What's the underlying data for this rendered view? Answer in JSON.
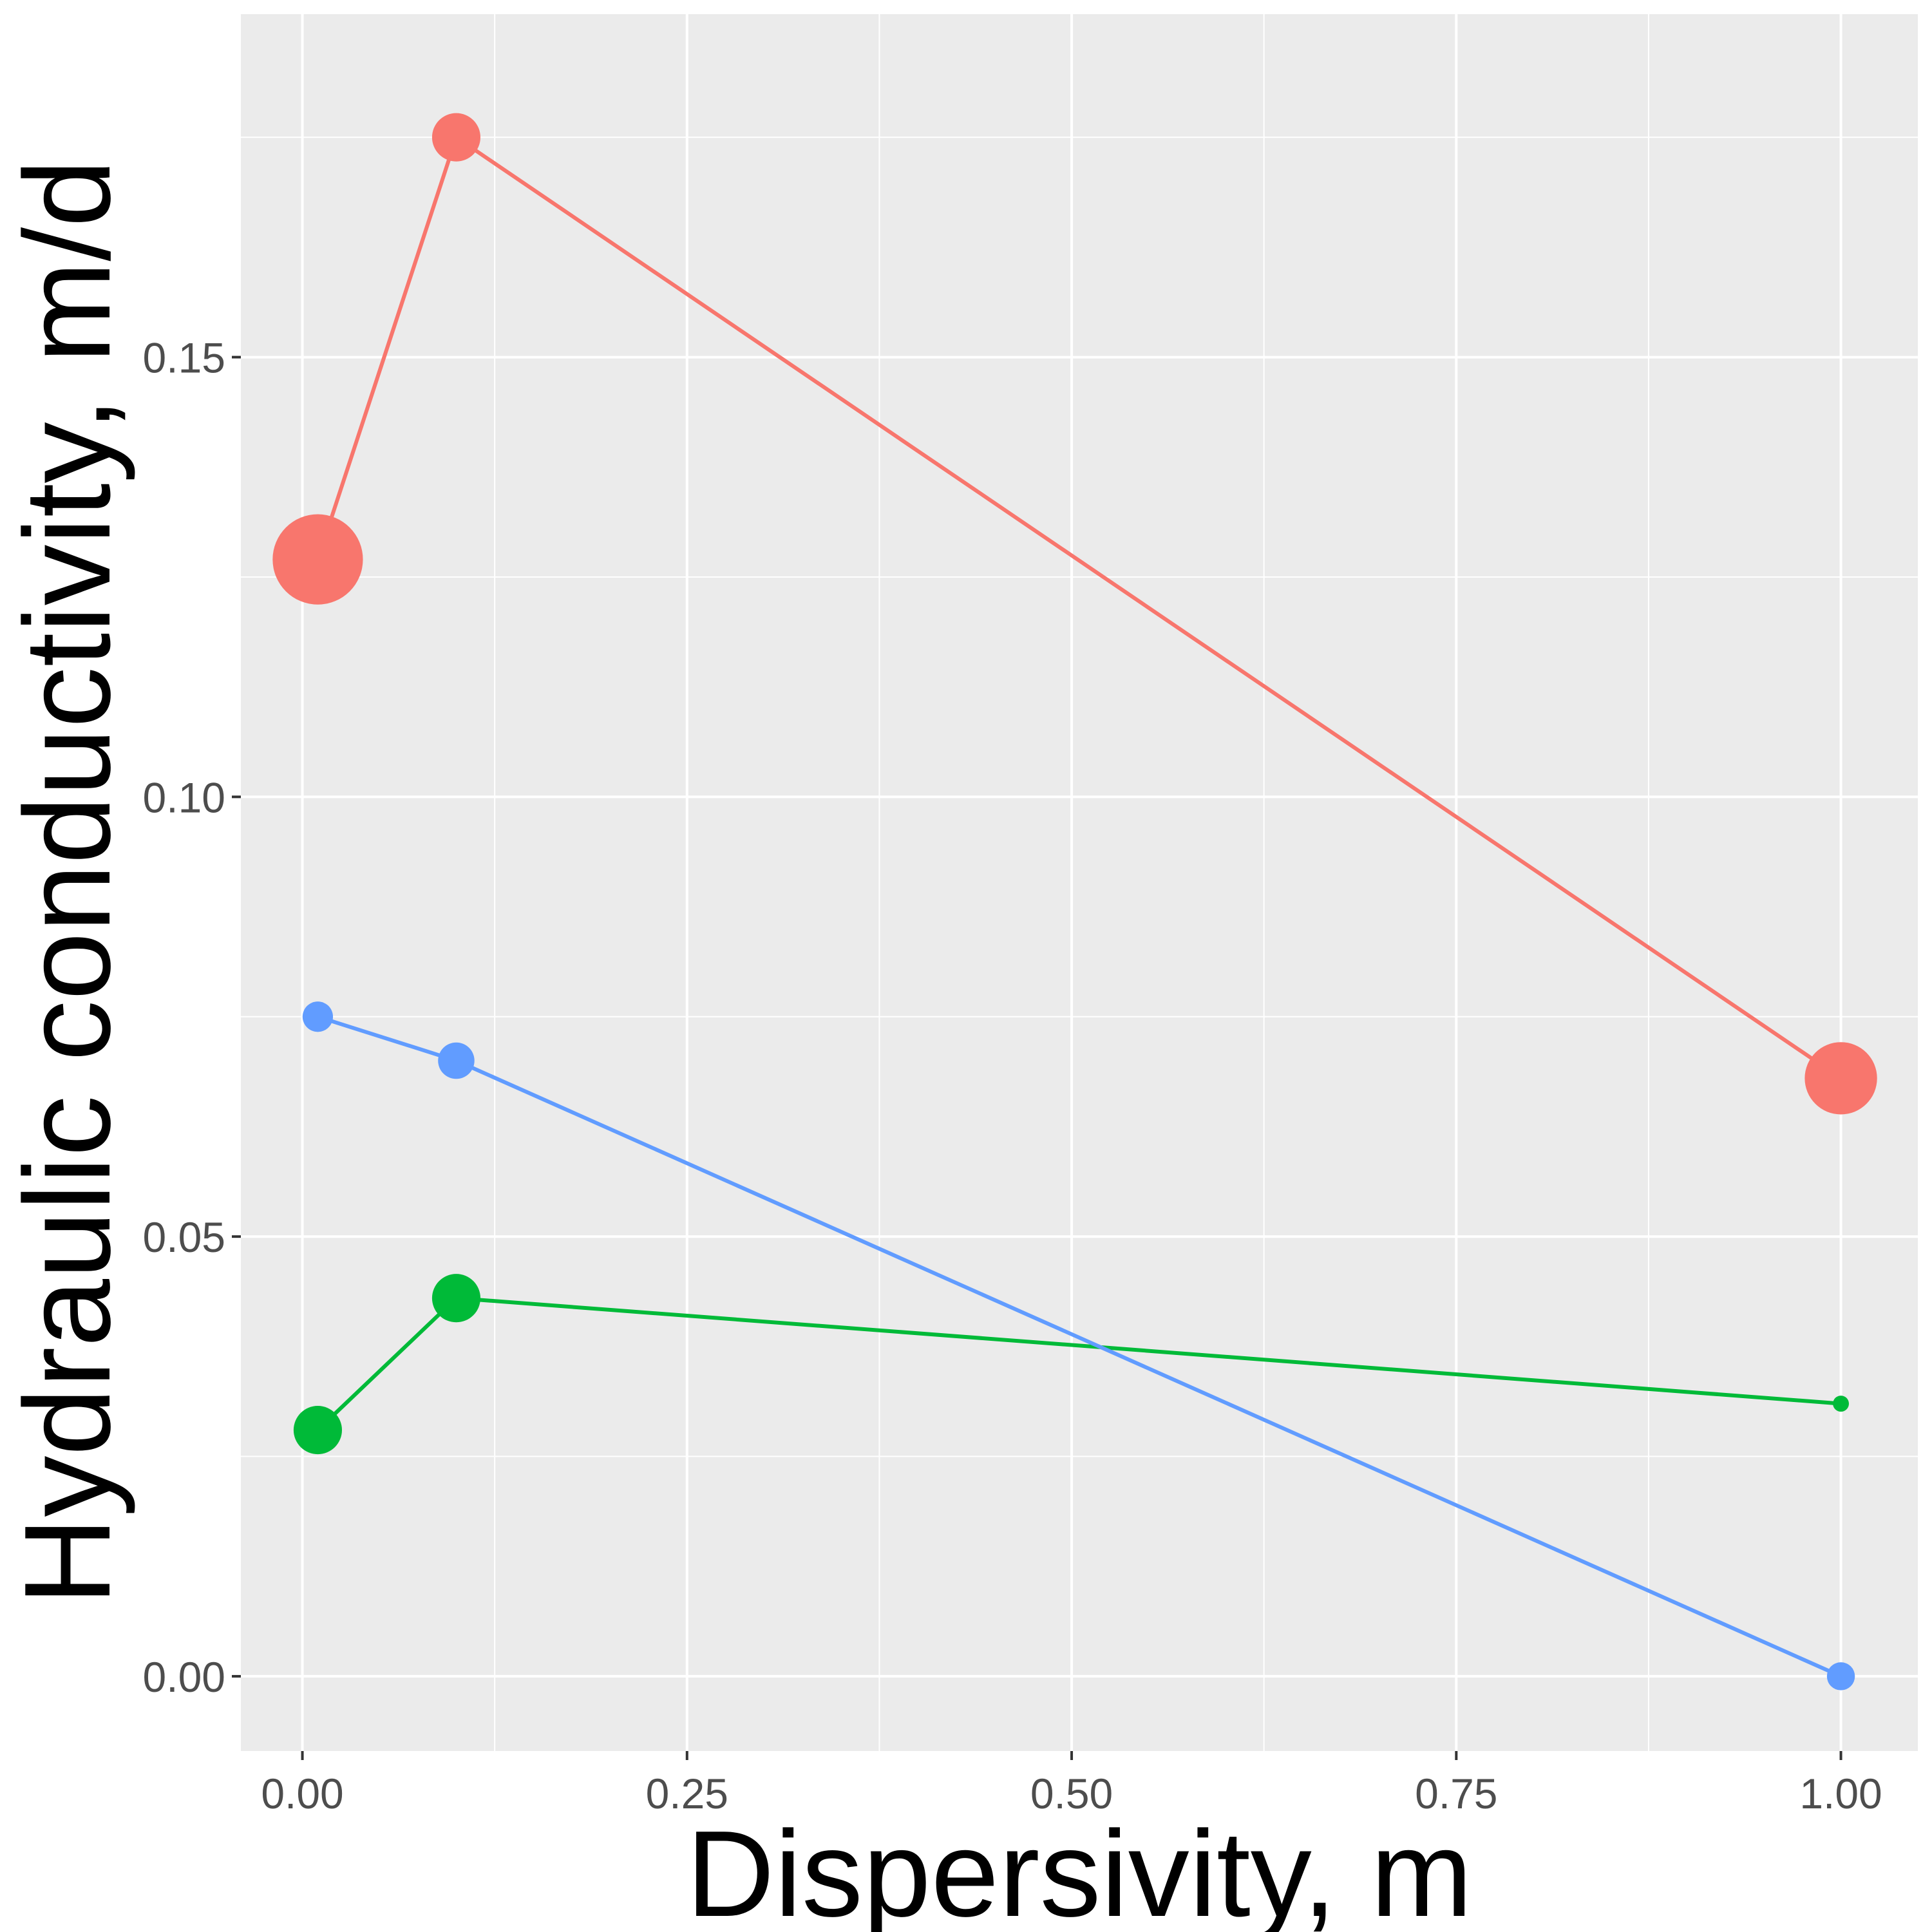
{
  "chart_data": {
    "type": "line",
    "title": "",
    "xlabel": "Dispersivity, m",
    "ylabel": "Hydraulic conductivity, m/d",
    "xlim": [
      -0.04,
      1.05
    ],
    "ylim": [
      -0.0085,
      0.189
    ],
    "x_ticks": [
      0.0,
      0.25,
      0.5,
      0.75,
      1.0
    ],
    "x_tick_labels": [
      "0.00",
      "0.25",
      "0.50",
      "0.75",
      "1.00"
    ],
    "y_ticks": [
      0.0,
      0.05,
      0.1,
      0.15
    ],
    "y_tick_labels": [
      "0.00",
      "0.05",
      "0.10",
      "0.15"
    ],
    "grid": true,
    "legend": "none",
    "panel_background": "#ebebeb",
    "grid_color": "#ffffff",
    "series": [
      {
        "color": "#f8766d",
        "points": [
          {
            "x": 0.01,
            "y": 0.127,
            "size": 7
          },
          {
            "x": 0.1,
            "y": 0.175,
            "size": 3.5
          },
          {
            "x": 1.0,
            "y": 0.068,
            "size": 5.5
          }
        ]
      },
      {
        "color": "#00ba38",
        "points": [
          {
            "x": 0.01,
            "y": 0.028,
            "size": 3.5
          },
          {
            "x": 0.1,
            "y": 0.043,
            "size": 3.5
          },
          {
            "x": 1.0,
            "y": 0.031,
            "size": 0.8
          }
        ]
      },
      {
        "color": "#619cff",
        "points": [
          {
            "x": 0.01,
            "y": 0.075,
            "size": 2
          },
          {
            "x": 0.1,
            "y": 0.07,
            "size": 2.5
          },
          {
            "x": 1.0,
            "y": 0.0,
            "size": 1.8
          }
        ]
      }
    ]
  }
}
